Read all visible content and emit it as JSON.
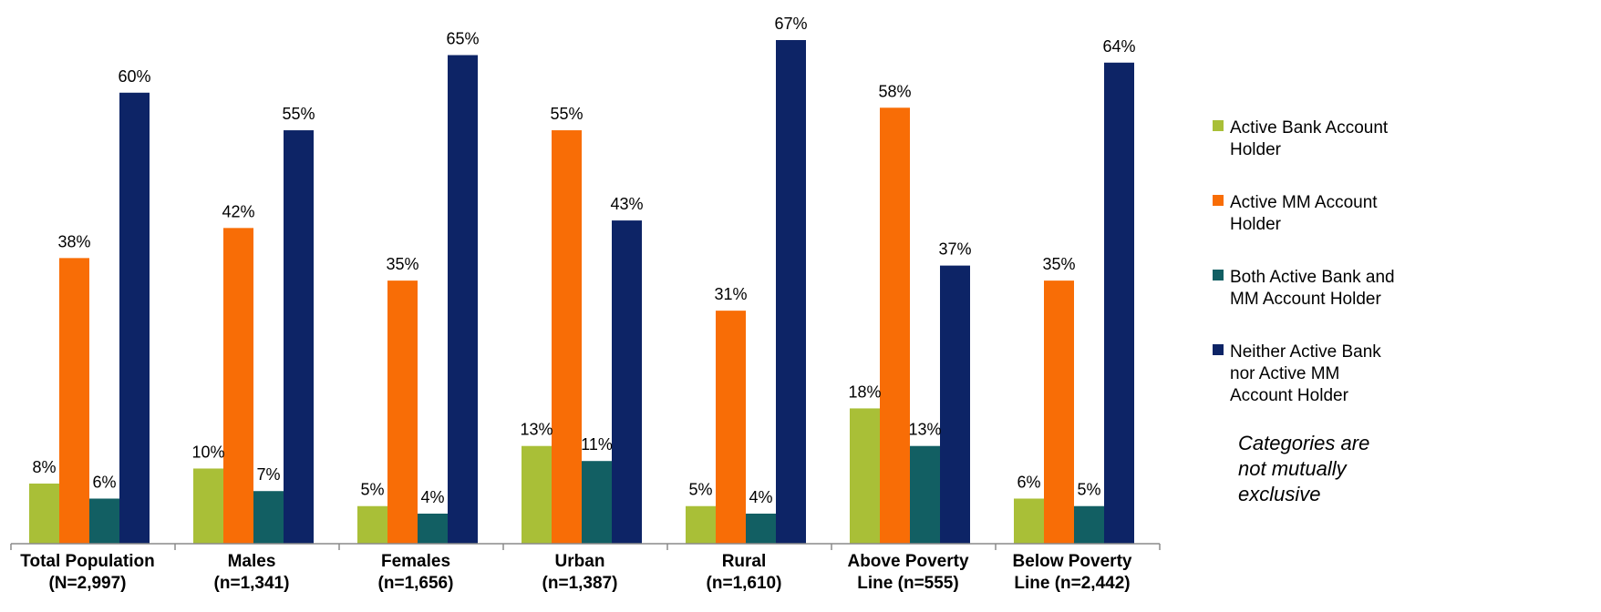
{
  "chart_data": {
    "type": "bar",
    "categories": [
      [
        "Total Population",
        "(N=2,997)"
      ],
      [
        "Males",
        "(n=1,341)"
      ],
      [
        "Females",
        "(n=1,656)"
      ],
      [
        "Urban",
        "(n=1,387)"
      ],
      [
        "Rural",
        "(n=1,610)"
      ],
      [
        "Above Poverty",
        "Line (n=555)"
      ],
      [
        "Below Poverty",
        "Line (n=2,442)"
      ]
    ],
    "series": [
      {
        "name": [
          "Active Bank Account",
          "Holder"
        ],
        "color": "#a9bf37",
        "values": [
          8,
          10,
          5,
          13,
          5,
          18,
          6
        ],
        "labels": [
          "8%",
          "10%",
          "5%",
          "13%",
          "5%",
          "18%",
          "6%"
        ]
      },
      {
        "name": [
          "Active MM Account",
          "Holder"
        ],
        "color": "#f86d06",
        "values": [
          38,
          42,
          35,
          55,
          31,
          58,
          35
        ],
        "labels": [
          "38%",
          "42%",
          "35%",
          "55%",
          "31%",
          "58%",
          "35%"
        ]
      },
      {
        "name": [
          "Both Active Bank and",
          "MM Account Holder"
        ],
        "color": "#125f63",
        "values": [
          6,
          7,
          4,
          11,
          4,
          13,
          5
        ],
        "labels": [
          "6%",
          "7%",
          "4%",
          "11%",
          "4%",
          "13%",
          "5%"
        ]
      },
      {
        "name": [
          "Neither Active Bank",
          "nor Active MM",
          "Account Holder"
        ],
        "color": "#0d2466",
        "values": [
          60,
          55,
          65,
          43,
          67,
          37,
          64
        ],
        "labels": [
          "60%",
          "55%",
          "65%",
          "43%",
          "67%",
          "37%",
          "64%"
        ]
      }
    ],
    "ylim": [
      0,
      67
    ],
    "grid": false,
    "legend_placement": "right",
    "note": [
      "Categories are",
      "not mutually",
      "exclusive"
    ]
  }
}
